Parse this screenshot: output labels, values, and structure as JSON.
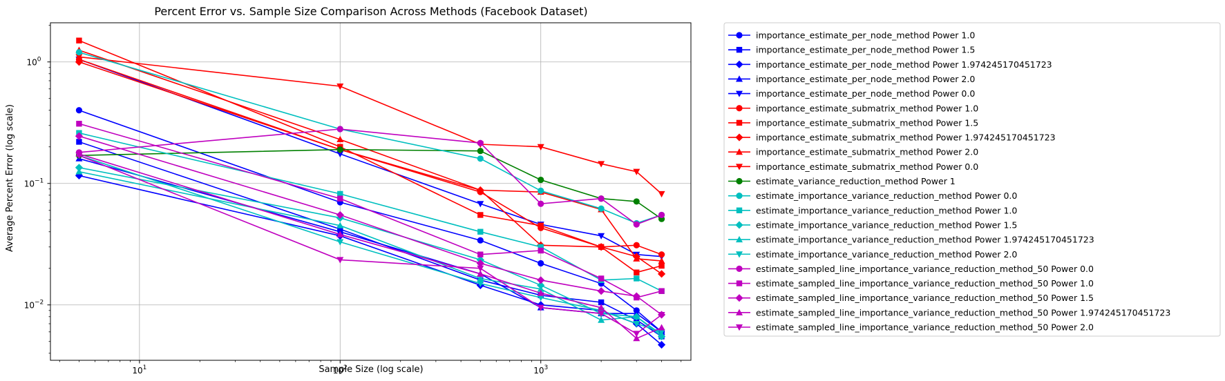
{
  "chart_data": {
    "type": "line",
    "title": "Percent Error vs. Sample Size Comparison Across Methods (Facebook Dataset)",
    "xlabel": "Sample Size (log scale)",
    "ylabel": "Average Percent Error (log scale)",
    "xscale": "log",
    "yscale": "log",
    "xlim": [
      3.6,
      5600
    ],
    "ylim": [
      0.0035,
      2.1
    ],
    "grid": true,
    "legend_position": "outside-right",
    "x": [
      5,
      100,
      500,
      1000,
      2000,
      3000,
      4000
    ],
    "x_ticks": [
      {
        "value": 10,
        "label": "10",
        "sup": "1"
      },
      {
        "value": 100,
        "label": "10",
        "sup": "2"
      },
      {
        "value": 1000,
        "label": "10",
        "sup": "3"
      }
    ],
    "y_ticks": [
      {
        "value": 0.01,
        "label": "10",
        "sup": "−2"
      },
      {
        "value": 0.1,
        "label": "10",
        "sup": "−1"
      },
      {
        "value": 1,
        "label": "10",
        "sup": "0"
      }
    ],
    "series": [
      {
        "name": "importance_estimate_per_node_method Power 1.0",
        "color": "#0000ff",
        "marker": "circle",
        "values": [
          0.4,
          0.07,
          0.034,
          0.022,
          0.015,
          0.009,
          0.006
        ]
      },
      {
        "name": "importance_estimate_per_node_method Power 1.5",
        "color": "#0000ff",
        "marker": "square",
        "values": [
          0.22,
          0.042,
          0.016,
          0.012,
          0.0105,
          0.0075,
          0.0055
        ]
      },
      {
        "name": "importance_estimate_per_node_method Power 1.974245170451723",
        "color": "#0000ff",
        "marker": "diamond",
        "values": [
          0.116,
          0.037,
          0.0145,
          0.01,
          0.009,
          0.007,
          0.0047
        ]
      },
      {
        "name": "importance_estimate_per_node_method Power 2.0",
        "color": "#0000ff",
        "marker": "triangle-up",
        "values": [
          0.16,
          0.04,
          0.018,
          0.0095,
          0.0085,
          0.0085,
          0.006
        ]
      },
      {
        "name": "importance_estimate_per_node_method Power 0.0",
        "color": "#0000ff",
        "marker": "triangle-down",
        "values": [
          1.05,
          0.175,
          0.068,
          0.046,
          0.037,
          0.026,
          0.025
        ]
      },
      {
        "name": "importance_estimate_submatrix_method Power 1.0",
        "color": "#ff0000",
        "marker": "circle",
        "values": [
          1.05,
          0.19,
          0.085,
          0.043,
          0.03,
          0.031,
          0.026
        ]
      },
      {
        "name": "importance_estimate_submatrix_method Power 1.5",
        "color": "#ff0000",
        "marker": "square",
        "values": [
          1.5,
          0.2,
          0.055,
          0.045,
          0.03,
          0.0185,
          0.021
        ]
      },
      {
        "name": "importance_estimate_submatrix_method Power 1.974245170451723",
        "color": "#ff0000",
        "marker": "diamond",
        "values": [
          1.0,
          0.19,
          0.088,
          0.031,
          0.03,
          0.025,
          0.018
        ]
      },
      {
        "name": "importance_estimate_submatrix_method Power 2.0",
        "color": "#ff0000",
        "marker": "triangle-up",
        "values": [
          1.25,
          0.23,
          0.088,
          0.085,
          0.061,
          0.024,
          0.023
        ]
      },
      {
        "name": "importance_estimate_submatrix_method Power 0.0",
        "color": "#ff0000",
        "marker": "triangle-down",
        "values": [
          1.1,
          0.63,
          0.21,
          0.2,
          0.145,
          0.125,
          0.082
        ]
      },
      {
        "name": "estimate_variance_reduction_method Power 1",
        "color": "#008000",
        "marker": "circle",
        "values": [
          0.17,
          0.19,
          0.185,
          0.107,
          0.075,
          0.071,
          0.051
        ]
      },
      {
        "name": "estimate_importance_variance_reduction_method Power 0.0",
        "color": "#00bfbf",
        "marker": "circle",
        "values": [
          1.2,
          0.28,
          0.16,
          0.087,
          0.062,
          0.047,
          0.055
        ]
      },
      {
        "name": "estimate_importance_variance_reduction_method Power 1.0",
        "color": "#00bfbf",
        "marker": "square",
        "values": [
          0.26,
          0.082,
          0.04,
          0.03,
          0.016,
          0.0165,
          0.013
        ]
      },
      {
        "name": "estimate_importance_variance_reduction_method Power 1.5",
        "color": "#00bfbf",
        "marker": "diamond",
        "values": [
          0.135,
          0.052,
          0.0235,
          0.0145,
          0.0085,
          0.008,
          0.0055
        ]
      },
      {
        "name": "estimate_importance_variance_reduction_method Power 1.974245170451723",
        "color": "#00bfbf",
        "marker": "triangle-up",
        "values": [
          0.125,
          0.045,
          0.0165,
          0.0135,
          0.0075,
          0.008,
          0.0057
        ]
      },
      {
        "name": "estimate_importance_variance_reduction_method Power 2.0",
        "color": "#00bfbf",
        "marker": "triangle-down",
        "values": [
          0.17,
          0.033,
          0.015,
          0.0115,
          0.009,
          0.007,
          0.006
        ]
      },
      {
        "name": "estimate_sampled_line_importance_variance_reduction_method_50 Power 0.0",
        "color": "#bf00bf",
        "marker": "circle",
        "values": [
          0.18,
          0.28,
          0.215,
          0.068,
          0.075,
          0.046,
          0.055
        ]
      },
      {
        "name": "estimate_sampled_line_importance_variance_reduction_method_50 Power 1.0",
        "color": "#bf00bf",
        "marker": "square",
        "values": [
          0.31,
          0.075,
          0.026,
          0.028,
          0.0165,
          0.0115,
          0.013
        ]
      },
      {
        "name": "estimate_sampled_line_importance_variance_reduction_method_50 Power 1.5",
        "color": "#bf00bf",
        "marker": "diamond",
        "values": [
          0.245,
          0.055,
          0.022,
          0.016,
          0.013,
          0.0118,
          0.0083
        ]
      },
      {
        "name": "estimate_sampled_line_importance_variance_reduction_method_50 Power 1.974245170451723",
        "color": "#bf00bf",
        "marker": "triangle-up",
        "values": [
          0.175,
          0.038,
          0.018,
          0.0125,
          0.0095,
          0.0053,
          0.0065
        ]
      },
      {
        "name": "estimate_sampled_line_importance_variance_reduction_method_50 Power 2.0",
        "color": "#bf00bf",
        "marker": "triangle-down",
        "values": [
          0.17,
          0.0235,
          0.02,
          0.0095,
          0.0085,
          0.0058,
          0.0083
        ]
      }
    ]
  }
}
